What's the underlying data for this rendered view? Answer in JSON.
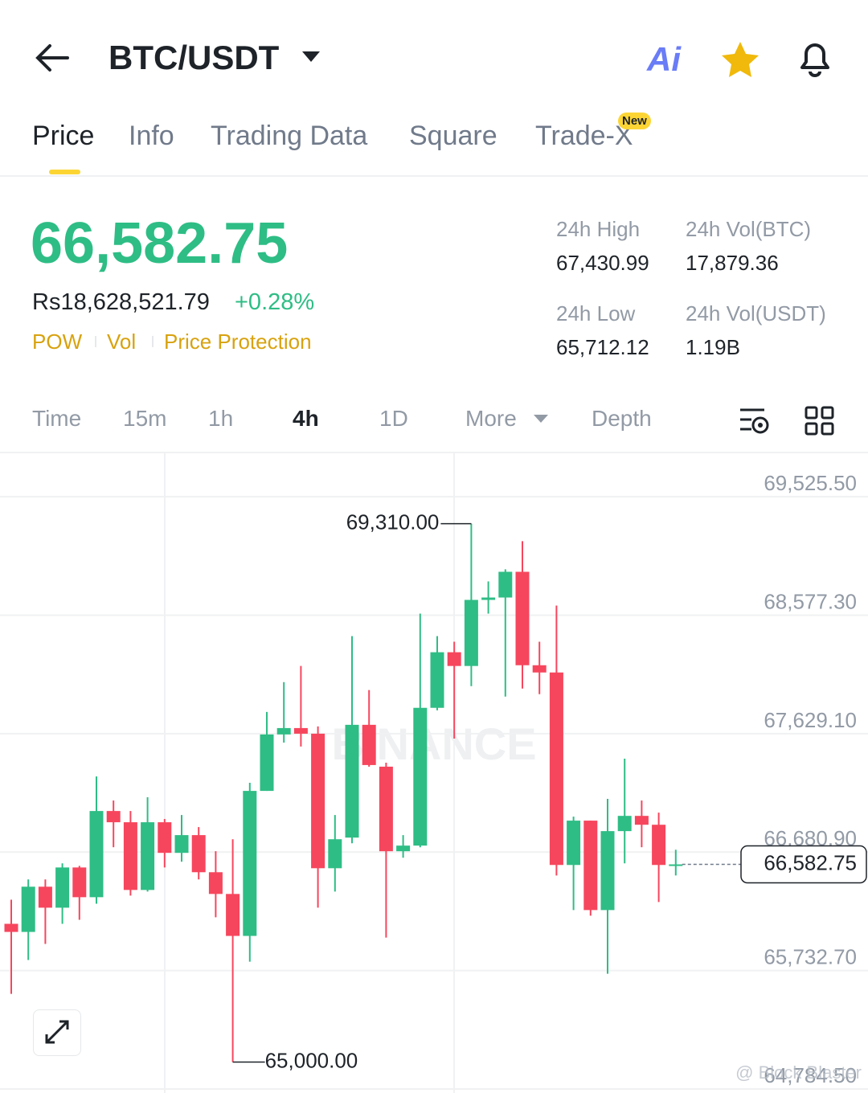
{
  "header": {
    "title": "BTC/USDT",
    "ai_label": "Ai"
  },
  "tabs": [
    "Price",
    "Info",
    "Trading Data",
    "Square",
    "Trade-X"
  ],
  "tab_badge": "New",
  "ticker": {
    "last_price": "66,582.75",
    "fiat_price": "Rs18,628,521.79",
    "change": "+0.28%",
    "tags": [
      "POW",
      "Vol",
      "Price Protection"
    ],
    "stats": [
      {
        "label": "24h High",
        "value": "67,430.99"
      },
      {
        "label": "24h Vol(BTC)",
        "value": "17,879.36"
      },
      {
        "label": "24h Low",
        "value": "65,712.12"
      },
      {
        "label": "24h Vol(USDT)",
        "value": "1.19B"
      }
    ]
  },
  "intervals": [
    "Time",
    "15m",
    "1h",
    "4h",
    "1D",
    "More",
    "Depth"
  ],
  "chart_data": {
    "type": "candlestick",
    "up_color": "#2ebd85",
    "down_color": "#f6465d",
    "ohlc": [
      [
        66107,
        66300,
        65546,
        66042
      ],
      [
        66042,
        66462,
        65817,
        66404
      ],
      [
        66404,
        66462,
        65946,
        66236
      ],
      [
        66236,
        66591,
        66107,
        66558
      ],
      [
        66558,
        66571,
        66139,
        66320
      ],
      [
        66320,
        67287,
        66268,
        67010
      ],
      [
        67010,
        67094,
        66720,
        66920
      ],
      [
        66920,
        67010,
        66333,
        66378
      ],
      [
        66378,
        67120,
        66365,
        66920
      ],
      [
        66920,
        66946,
        66558,
        66675
      ],
      [
        66675,
        66978,
        66604,
        66817
      ],
      [
        66817,
        66881,
        66462,
        66520
      ],
      [
        66520,
        66688,
        66159,
        66346
      ],
      [
        66346,
        66784,
        65000,
        66010
      ],
      [
        66010,
        67236,
        65804,
        67171
      ],
      [
        67171,
        67803,
        67171,
        67623
      ],
      [
        67623,
        68042,
        67558,
        67674
      ],
      [
        67674,
        68171,
        67526,
        67629
      ],
      [
        67629,
        67687,
        66236,
        66552
      ],
      [
        66552,
        66978,
        66365,
        66784
      ],
      [
        66797,
        68410,
        66752,
        67700
      ],
      [
        67700,
        67978,
        67365,
        67378
      ],
      [
        67365,
        67397,
        65997,
        66688
      ],
      [
        66688,
        66817,
        66636,
        66733
      ],
      [
        66733,
        68590,
        66720,
        67836
      ],
      [
        67836,
        68410,
        67816,
        68281
      ],
      [
        68281,
        68365,
        67590,
        68171
      ],
      [
        68171,
        69310,
        68010,
        68700
      ],
      [
        68700,
        68848,
        68590,
        68719
      ],
      [
        68719,
        68945,
        67926,
        68925
      ],
      [
        68925,
        69170,
        67990,
        68177
      ],
      [
        68177,
        68365,
        67945,
        68119
      ],
      [
        68119,
        68655,
        66494,
        66578
      ],
      [
        66578,
        66965,
        66217,
        66933
      ],
      [
        66933,
        66933,
        66172,
        66217
      ],
      [
        66217,
        67107,
        65707,
        66849
      ],
      [
        66849,
        67429,
        66591,
        66971
      ],
      [
        66971,
        67094,
        66720,
        66900
      ],
      [
        66900,
        66997,
        66281,
        66578
      ],
      [
        66571,
        66700,
        66494,
        66582.75
      ]
    ],
    "ylim": [
      64752.5,
      69880.25
    ],
    "yticks": [
      {
        "value": 69525.5,
        "label": "69,525.50"
      },
      {
        "value": 68577.3,
        "label": "68,577.30"
      },
      {
        "value": 67629.1,
        "label": "67,629.10"
      },
      {
        "value": 66680.9,
        "label": "66,680.90"
      },
      {
        "value": 65732.7,
        "label": "65,732.70"
      },
      {
        "value": 64784.5,
        "label": "64,784.50"
      }
    ],
    "grid": true,
    "high_marker": {
      "value": 69310,
      "label": "69,310.00"
    },
    "low_marker": {
      "value": 65000,
      "label": "65,000.00"
    },
    "last_price_marker": {
      "value": 66582.75,
      "label": "66,582.75"
    },
    "watermark": "BINANCE"
  },
  "credit": "@ Block Blaster"
}
